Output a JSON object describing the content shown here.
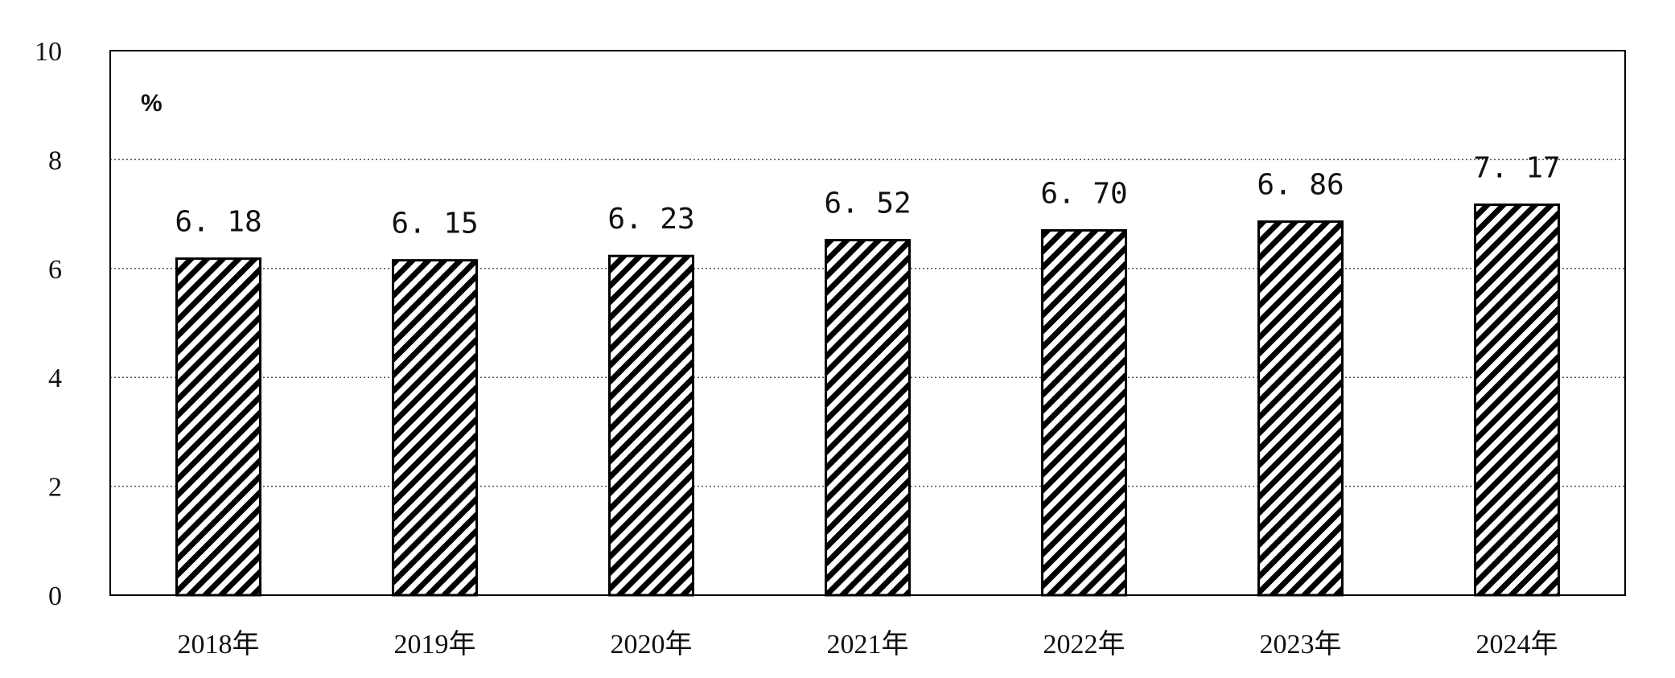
{
  "chart_data": {
    "type": "bar",
    "unit_label": "%",
    "categories": [
      "2018年",
      "2019年",
      "2020年",
      "2021年",
      "2022年",
      "2023年",
      "2024年"
    ],
    "values": [
      6.18,
      6.15,
      6.23,
      6.52,
      6.7,
      6.86,
      7.17
    ],
    "value_labels": [
      "6. 18",
      "6. 15",
      "6. 23",
      "6. 52",
      "6. 70",
      "6. 86",
      "7. 17"
    ],
    "yticks": [
      "0",
      "2",
      "4",
      "6",
      "8",
      "10"
    ],
    "ylim": [
      0,
      10
    ],
    "grid": true,
    "bar_pattern": "diagonal-hatch",
    "bar_color": "#000000",
    "background": "#ffffff"
  }
}
